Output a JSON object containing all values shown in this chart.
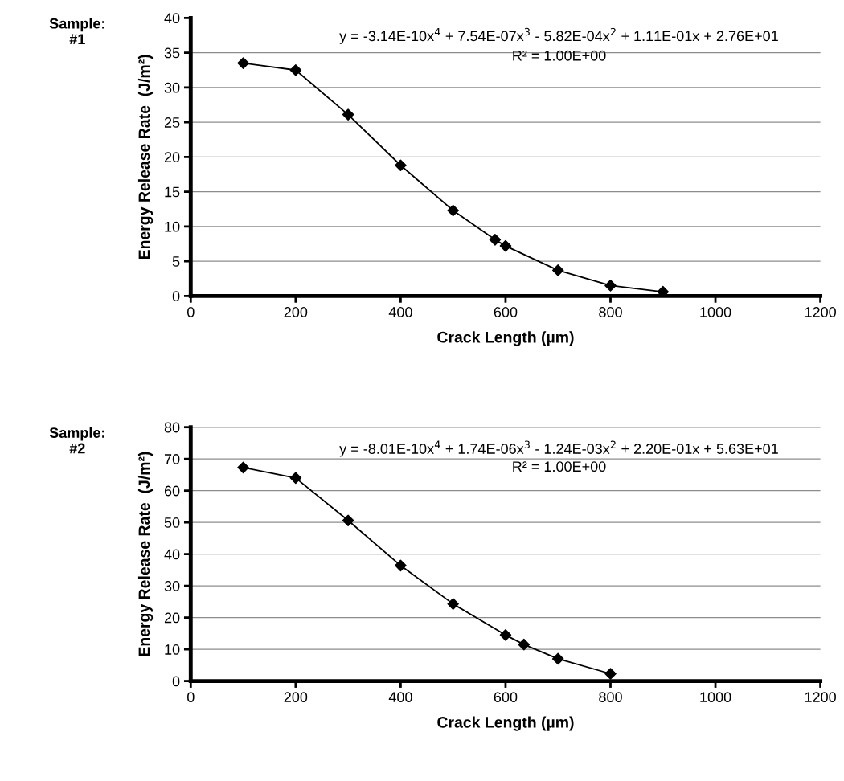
{
  "chart_data": [
    {
      "type": "line",
      "xlabel": "Crack Length (µm)",
      "ylabel": "Energy Release Rate  (J/m²)",
      "annotations": [
        "Sample:\n#1",
        "y = -3.14E-10x$^{4}$ + 7.54E-07x$^{3}$ - 5.82E-04x$^{2}$ + 1.11E-01x + 2.76E+01",
        "R² = 1.00E+00"
      ],
      "x": [
        100,
        200,
        300,
        400,
        500,
        580,
        600,
        700,
        800,
        900
      ],
      "series": [
        {
          "color": "#000000",
          "values": [
            33.5,
            32.5,
            26.1,
            18.8,
            12.3,
            8.1,
            7.2,
            3.7,
            1.5,
            0.6
          ]
        }
      ],
      "marker": "diamond",
      "line_style": "solid",
      "grid": "y",
      "xlim": [
        0,
        1200
      ],
      "xticks": [
        0,
        200,
        400,
        600,
        800,
        1000,
        1200
      ],
      "ylim": [
        0,
        40
      ],
      "yticks": [
        0,
        5,
        10,
        15,
        20,
        25,
        30,
        35,
        40
      ]
    },
    {
      "type": "line",
      "xlabel": "Crack Length (µm)",
      "ylabel": "Energy Release Rate  (J/m²)",
      "annotations": [
        "Sample:\n#2",
        "y = -8.01E-10x$^{4}$ + 1.74E-06x$^{3}$ - 1.24E-03x$^{2}$ + 2.20E-01x + 5.63E+01",
        "R² = 1.00E+00"
      ],
      "x": [
        100,
        200,
        300,
        400,
        500,
        600,
        635,
        700,
        800
      ],
      "series": [
        {
          "color": "#000000",
          "values": [
            67.3,
            64.0,
            50.6,
            36.4,
            24.3,
            14.5,
            11.5,
            7.0,
            2.3
          ]
        }
      ],
      "marker": "diamond",
      "line_style": "solid",
      "grid": "y",
      "xlim": [
        0,
        1200
      ],
      "xticks": [
        0,
        200,
        400,
        600,
        800,
        1000,
        1200
      ],
      "ylim": [
        0,
        80
      ],
      "yticks": [
        0,
        10,
        20,
        30,
        40,
        50,
        60,
        70,
        80
      ]
    }
  ]
}
